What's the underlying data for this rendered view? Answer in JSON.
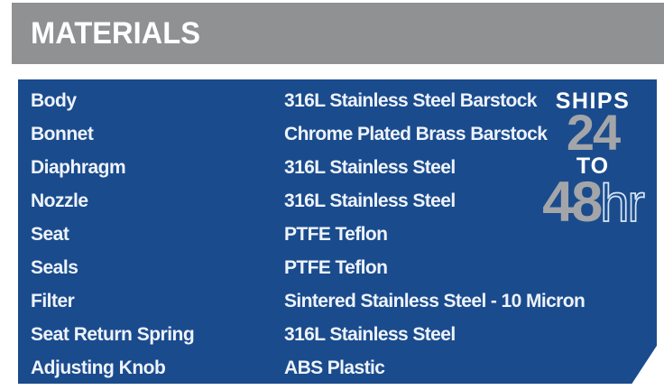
{
  "header": {
    "title": "MATERIALS"
  },
  "table": {
    "rows": [
      {
        "label": "Body",
        "value": "316L Stainless Steel Barstock"
      },
      {
        "label": "Bonnet",
        "value": "Chrome Plated Brass Barstock"
      },
      {
        "label": "Diaphragm",
        "value": "316L Stainless Steel"
      },
      {
        "label": "Nozzle",
        "value": "316L Stainless Steel"
      },
      {
        "label": "Seat",
        "value": "PTFE Teflon"
      },
      {
        "label": "Seals",
        "value": "PTFE Teflon"
      },
      {
        "label": "Filter",
        "value": "Sintered Stainless Steel - 10 Micron"
      },
      {
        "label": "Seat Return Spring",
        "value": "316L Stainless Steel"
      },
      {
        "label": "Adjusting Knob",
        "value": "ABS Plastic"
      }
    ]
  },
  "badge": {
    "line1": "SHIPS",
    "line2": "24",
    "line3": "TO",
    "line4_number": "48",
    "line4_suffix": "hr"
  },
  "colors": {
    "panel_blue": "#1a4b8d",
    "header_gray": "#8f9193",
    "badge_number_gray": "#a3a5a8",
    "text_white": "#eef3fa"
  }
}
